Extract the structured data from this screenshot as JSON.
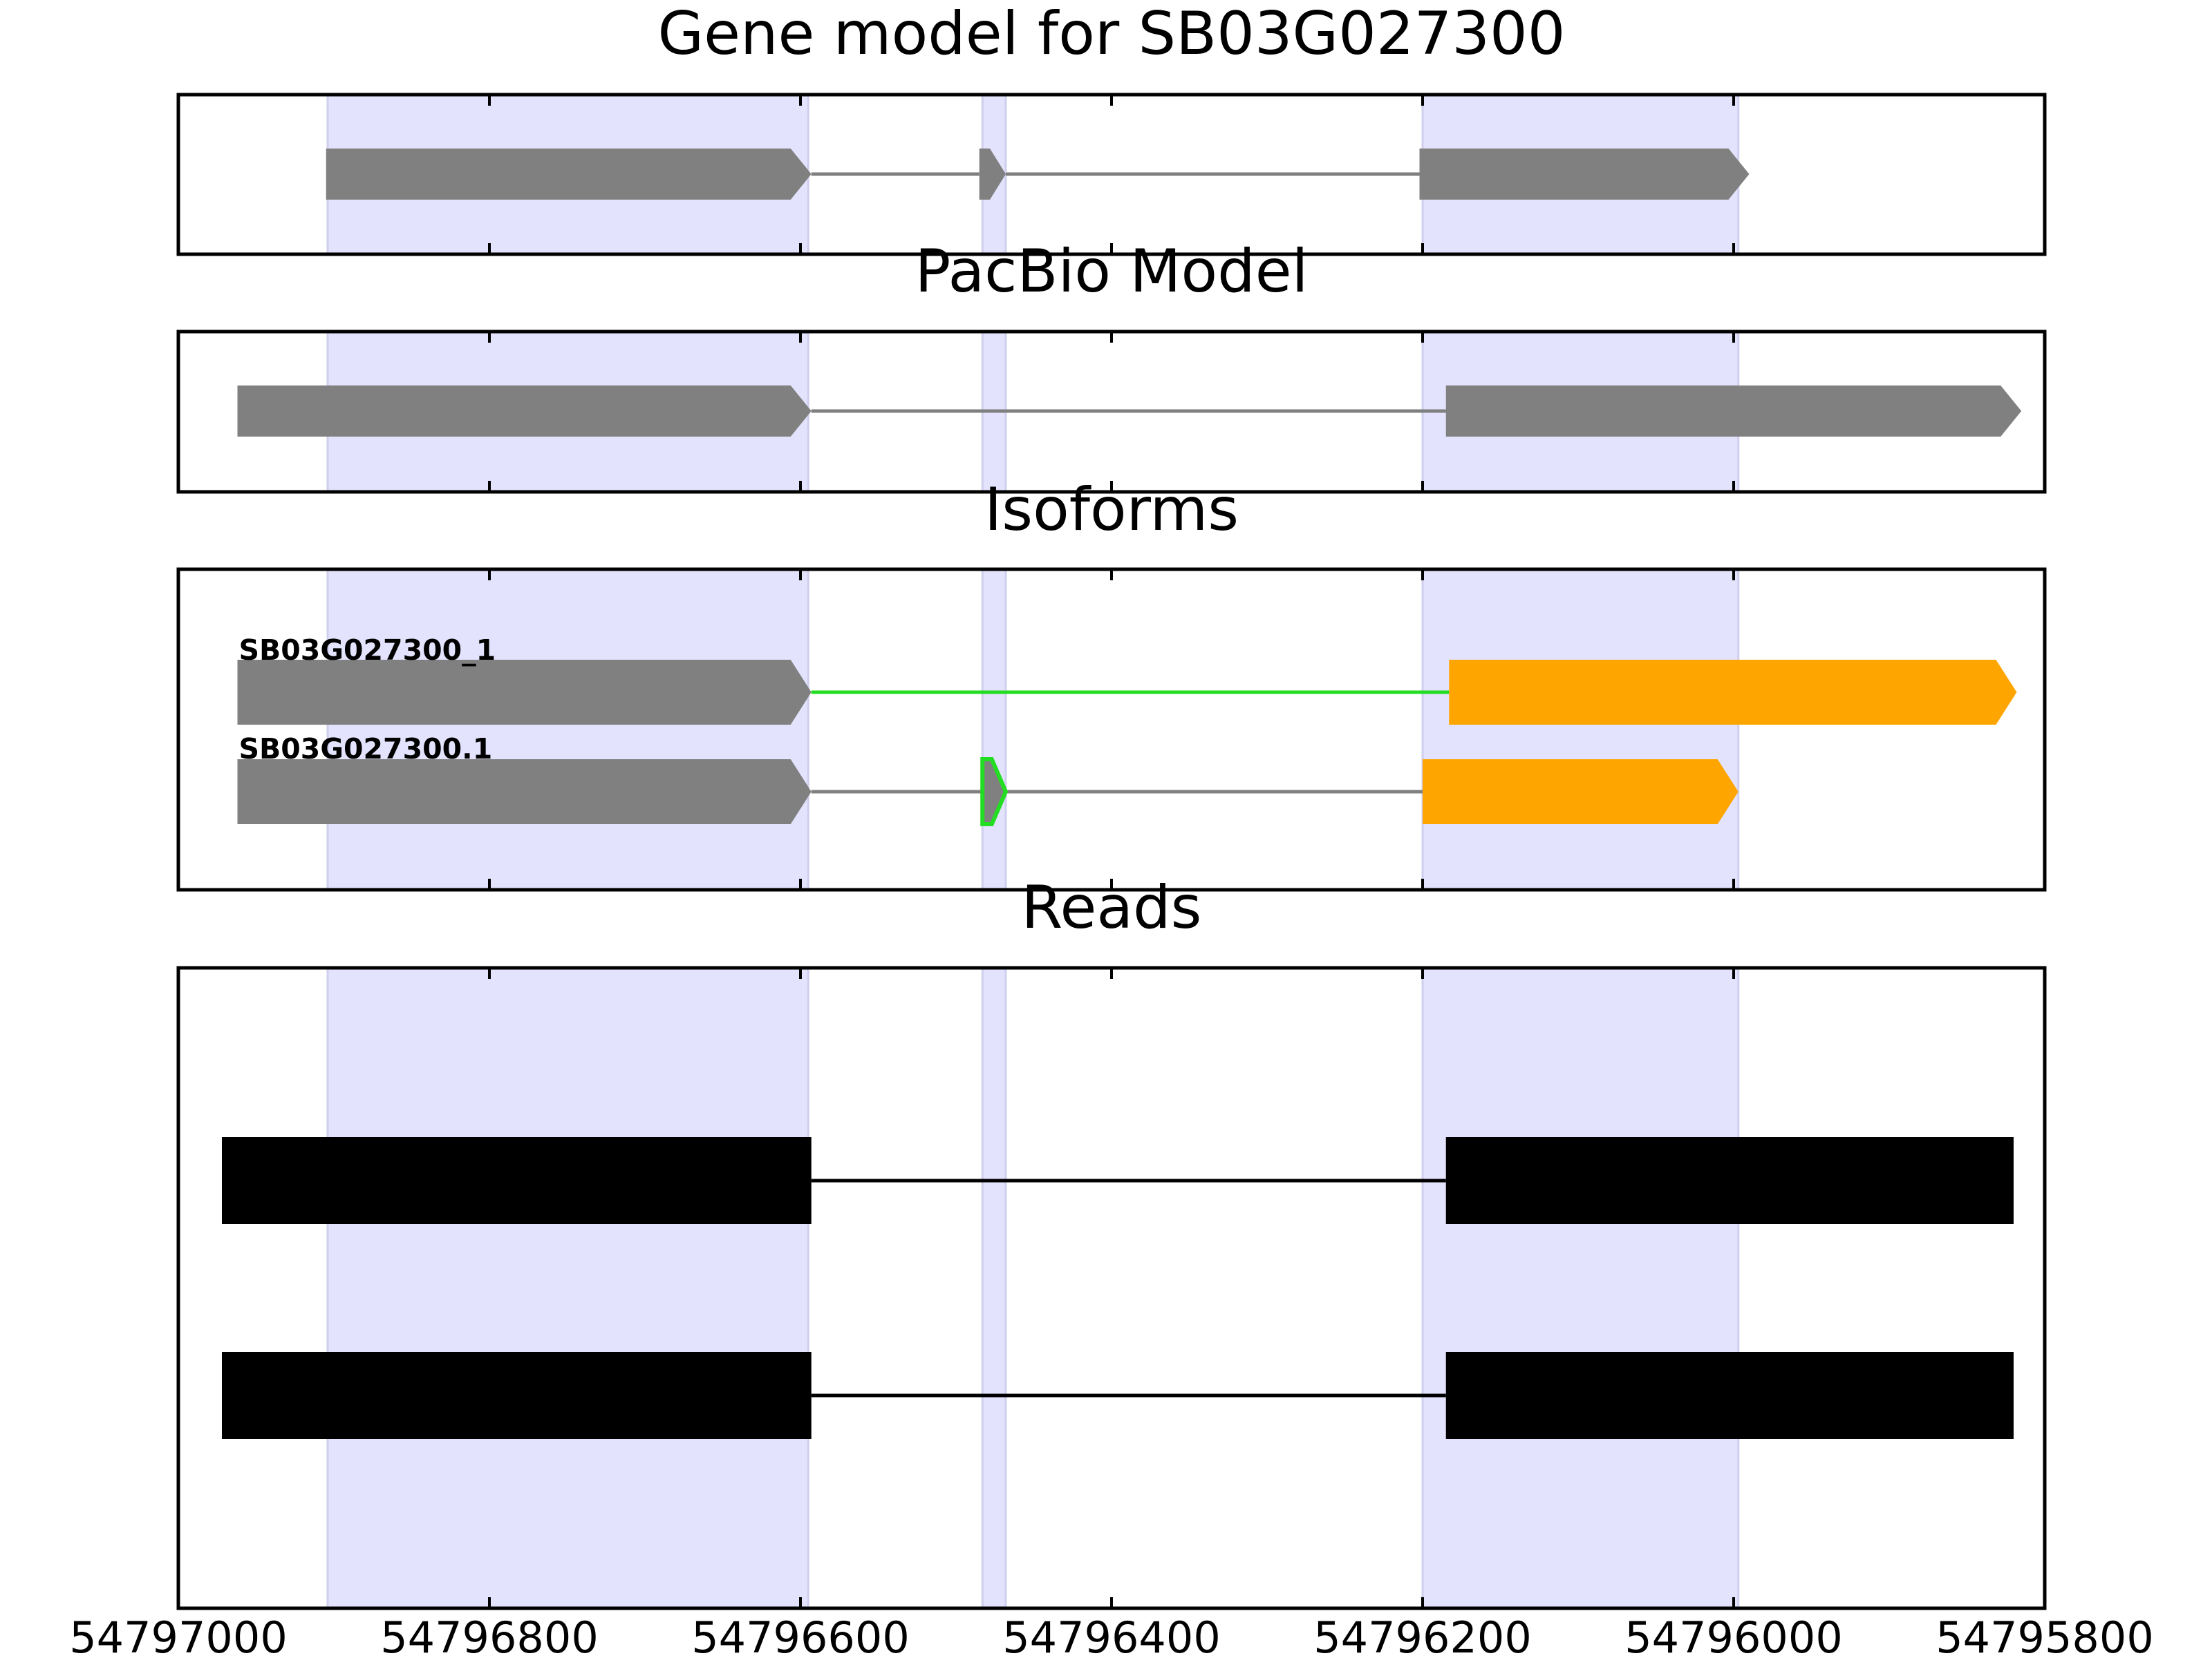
{
  "chart_data": {
    "type": "gene-structure",
    "x_axis": {
      "range": [
        54797000,
        54795800
      ],
      "ticks": [
        54797000,
        54796800,
        54796600,
        54796400,
        54796200,
        54796000,
        54795800
      ],
      "tick_labels": [
        "54797000",
        "54796800",
        "54796600",
        "54796400",
        "54796200",
        "54796000",
        "54795800"
      ]
    },
    "highlighted_exons": [
      [
        54796904,
        54796595
      ],
      [
        54796483,
        54796468
      ],
      [
        54796200,
        54795997
      ]
    ],
    "panels": [
      {
        "title": "Gene model for SB03G027300",
        "models": [
          {
            "label": "",
            "exons": [
              [
                54796905,
                54796593
              ],
              [
                54796485,
                54796468
              ],
              [
                54796202,
                54795990
              ]
            ],
            "exon_color": "#808080",
            "intron_colors": [
              "#808080",
              "#808080"
            ],
            "outlined_exons": []
          }
        ]
      },
      {
        "title": "PacBio Model",
        "models": [
          {
            "label": "",
            "exons": [
              [
                54796962,
                54796593
              ],
              [
                54796185,
                54795815
              ]
            ],
            "exon_color": "#808080",
            "intron_colors": [
              "#808080"
            ],
            "outlined_exons": []
          }
        ]
      },
      {
        "title": "Isoforms",
        "models": [
          {
            "label": "SB03G027300_1",
            "exons": [
              [
                54796962,
                54796593
              ],
              [
                54796183,
                54795818
              ]
            ],
            "exon_colors": [
              "#808080",
              "#ffa500"
            ],
            "intron_colors": [
              "#22dd22"
            ],
            "outlined_exons": []
          },
          {
            "label": "SB03G027300.1",
            "exons": [
              [
                54796962,
                54796593
              ],
              [
                54796483,
                54796468
              ],
              [
                54796200,
                54795997
              ]
            ],
            "exon_colors": [
              "#808080",
              "#808080",
              "#ffa500"
            ],
            "intron_colors": [
              "#808080",
              "#808080"
            ],
            "outlined_exons": [
              1
            ]
          }
        ]
      },
      {
        "title": "Reads",
        "reads": [
          {
            "exons": [
              [
                54796972,
                54796593
              ],
              [
                54796185,
                54795820
              ]
            ]
          },
          {
            "exons": [
              [
                54796972,
                54796593
              ],
              [
                54796185,
                54795820
              ]
            ]
          }
        ]
      }
    ]
  }
}
